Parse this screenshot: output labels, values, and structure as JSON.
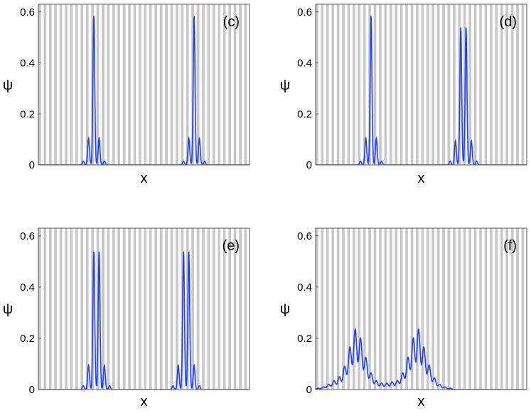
{
  "figure": {
    "description_colors": {
      "stripe": "#c8c8c8",
      "background": "#ffffff",
      "curve": "#1f3fff",
      "frame": "#555555"
    }
  },
  "chart_data": [
    {
      "type": "line",
      "panel_label": "(c)",
      "xlabel": "x",
      "ylabel": "ψ",
      "ylim": [
        0,
        0.63
      ],
      "yticks": [
        "0",
        "0.2",
        "0.4",
        "0.6"
      ],
      "xlim": [
        0,
        40
      ],
      "lattice_period": 1,
      "series": [
        {
          "name": "psi",
          "peaks": [
            {
              "center": 10.5,
              "amp": 0.585,
              "width": 0.17
            },
            {
              "center": 9.5,
              "amp": 0.105,
              "width": 0.17
            },
            {
              "center": 11.5,
              "amp": 0.105,
              "width": 0.17
            },
            {
              "center": 8.5,
              "amp": 0.015,
              "width": 0.17
            },
            {
              "center": 12.5,
              "amp": 0.015,
              "width": 0.17
            },
            {
              "center": 29.5,
              "amp": 0.585,
              "width": 0.17
            },
            {
              "center": 28.5,
              "amp": 0.105,
              "width": 0.17
            },
            {
              "center": 30.5,
              "amp": 0.105,
              "width": 0.17
            },
            {
              "center": 27.5,
              "amp": 0.015,
              "width": 0.17
            },
            {
              "center": 31.5,
              "amp": 0.015,
              "width": 0.17
            }
          ]
        }
      ]
    },
    {
      "type": "line",
      "panel_label": "(d)",
      "xlabel": "x",
      "ylabel": "ψ",
      "ylim": [
        0,
        0.63
      ],
      "yticks": [
        "0",
        "0.2",
        "0.4",
        "0.6"
      ],
      "xlim": [
        0,
        40
      ],
      "lattice_period": 1,
      "series": [
        {
          "name": "psi",
          "peaks": [
            {
              "center": 10.5,
              "amp": 0.585,
              "width": 0.17
            },
            {
              "center": 9.5,
              "amp": 0.105,
              "width": 0.17
            },
            {
              "center": 11.5,
              "amp": 0.105,
              "width": 0.17
            },
            {
              "center": 8.5,
              "amp": 0.015,
              "width": 0.17
            },
            {
              "center": 12.5,
              "amp": 0.015,
              "width": 0.17
            },
            {
              "center": 27.5,
              "amp": 0.54,
              "width": 0.17
            },
            {
              "center": 28.5,
              "amp": 0.54,
              "width": 0.17
            },
            {
              "center": 26.5,
              "amp": 0.095,
              "width": 0.17
            },
            {
              "center": 29.5,
              "amp": 0.095,
              "width": 0.17
            },
            {
              "center": 25.5,
              "amp": 0.015,
              "width": 0.17
            },
            {
              "center": 30.5,
              "amp": 0.015,
              "width": 0.17
            }
          ]
        }
      ]
    },
    {
      "type": "line",
      "panel_label": "(e)",
      "xlabel": "x",
      "ylabel": "ψ",
      "ylim": [
        0,
        0.63
      ],
      "yticks": [
        "0",
        "0.2",
        "0.4",
        "0.6"
      ],
      "xlim": [
        0,
        40
      ],
      "lattice_period": 1,
      "series": [
        {
          "name": "psi",
          "peaks": [
            {
              "center": 10.5,
              "amp": 0.54,
              "width": 0.17
            },
            {
              "center": 11.5,
              "amp": 0.54,
              "width": 0.17
            },
            {
              "center": 9.5,
              "amp": 0.095,
              "width": 0.17
            },
            {
              "center": 12.5,
              "amp": 0.095,
              "width": 0.17
            },
            {
              "center": 8.5,
              "amp": 0.015,
              "width": 0.17
            },
            {
              "center": 13.5,
              "amp": 0.015,
              "width": 0.17
            },
            {
              "center": 27.5,
              "amp": 0.54,
              "width": 0.17
            },
            {
              "center": 28.5,
              "amp": 0.54,
              "width": 0.17
            },
            {
              "center": 26.5,
              "amp": 0.095,
              "width": 0.17
            },
            {
              "center": 29.5,
              "amp": 0.095,
              "width": 0.17
            },
            {
              "center": 25.5,
              "amp": 0.015,
              "width": 0.17
            },
            {
              "center": 30.5,
              "amp": 0.015,
              "width": 0.17
            }
          ]
        }
      ]
    },
    {
      "type": "line",
      "panel_label": "(f)",
      "xlabel": "x",
      "ylabel": "ψ",
      "ylim": [
        0,
        0.63
      ],
      "yticks": [
        "0",
        "0.2",
        "0.4",
        "0.6"
      ],
      "xlim": [
        0,
        40
      ],
      "lattice_period": 1,
      "series": [
        {
          "name": "psi",
          "peaks": [
            {
              "center": 0.5,
              "amp": 0.005,
              "width": 0.3
            },
            {
              "center": 1.5,
              "amp": 0.01,
              "width": 0.3
            },
            {
              "center": 2.5,
              "amp": 0.02,
              "width": 0.3
            },
            {
              "center": 3.5,
              "amp": 0.035,
              "width": 0.3
            },
            {
              "center": 4.5,
              "amp": 0.05,
              "width": 0.3
            },
            {
              "center": 5.5,
              "amp": 0.09,
              "width": 0.3
            },
            {
              "center": 6.5,
              "amp": 0.165,
              "width": 0.3
            },
            {
              "center": 7.5,
              "amp": 0.235,
              "width": 0.3
            },
            {
              "center": 8.5,
              "amp": 0.2,
              "width": 0.3
            },
            {
              "center": 9.5,
              "amp": 0.125,
              "width": 0.3
            },
            {
              "center": 10.5,
              "amp": 0.065,
              "width": 0.3
            },
            {
              "center": 11.5,
              "amp": 0.035,
              "width": 0.3
            },
            {
              "center": 12.5,
              "amp": 0.025,
              "width": 0.3
            },
            {
              "center": 13.5,
              "amp": 0.025,
              "width": 0.3
            },
            {
              "center": 14.5,
              "amp": 0.03,
              "width": 0.3
            },
            {
              "center": 15.5,
              "amp": 0.035,
              "width": 0.3
            },
            {
              "center": 16.5,
              "amp": 0.065,
              "width": 0.3
            },
            {
              "center": 17.5,
              "amp": 0.125,
              "width": 0.3
            },
            {
              "center": 18.5,
              "amp": 0.2,
              "width": 0.3
            },
            {
              "center": 19.5,
              "amp": 0.235,
              "width": 0.3
            },
            {
              "center": 20.5,
              "amp": 0.165,
              "width": 0.3
            },
            {
              "center": 21.5,
              "amp": 0.095,
              "width": 0.3
            },
            {
              "center": 22.5,
              "amp": 0.045,
              "width": 0.3
            },
            {
              "center": 23.5,
              "amp": 0.02,
              "width": 0.3
            },
            {
              "center": 24.5,
              "amp": 0.01,
              "width": 0.3
            },
            {
              "center": 25.5,
              "amp": 0.005,
              "width": 0.3
            }
          ]
        }
      ]
    }
  ]
}
